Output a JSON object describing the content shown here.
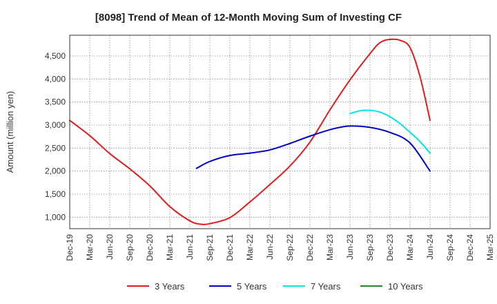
{
  "chart_data": {
    "type": "line",
    "title": "[8098]  Trend of Mean of 12-Month Moving Sum of Investing CF",
    "ylabel": "Amount (million yen)",
    "xlabel": "",
    "ylim": [
      750,
      4950
    ],
    "y_ticks": [
      1000,
      1500,
      2000,
      2500,
      3000,
      3500,
      4000,
      4500
    ],
    "y_tick_labels": [
      "1,000",
      "1,500",
      "2,000",
      "2,500",
      "3,000",
      "3,500",
      "4,000",
      "4,500"
    ],
    "categories": [
      "Dec-19",
      "Mar-20",
      "Jun-20",
      "Sep-20",
      "Dec-20",
      "Mar-21",
      "Jun-21",
      "Sep-21",
      "Dec-21",
      "Mar-22",
      "Jun-22",
      "Sep-22",
      "Dec-22",
      "Mar-23",
      "Jun-23",
      "Sep-23",
      "Dec-23",
      "Mar-24",
      "Jun-24",
      "Sep-24",
      "Dec-24",
      "Mar-25"
    ],
    "grid": true,
    "series": [
      {
        "name": "3 Years",
        "color": "#e41a1c",
        "x": [
          0,
          1,
          2,
          3,
          4,
          5,
          6,
          6.5,
          7,
          8,
          9,
          10,
          11,
          12,
          13,
          14,
          15,
          15.5,
          16,
          16.5,
          17,
          17.5,
          18
        ],
        "values": [
          3100,
          2770,
          2380,
          2050,
          1680,
          1230,
          920,
          850,
          860,
          990,
          1330,
          1710,
          2110,
          2630,
          3330,
          3980,
          4550,
          4790,
          4860,
          4840,
          4680,
          4050,
          3100
        ]
      },
      {
        "name": "5 Years",
        "color": "#0000cc",
        "x": [
          6.333,
          7,
          8,
          9,
          10,
          11,
          12,
          13,
          13.5,
          14,
          15,
          16,
          17,
          18
        ],
        "values": [
          2060,
          2210,
          2340,
          2390,
          2460,
          2600,
          2760,
          2900,
          2950,
          2980,
          2950,
          2840,
          2610,
          2000
        ]
      },
      {
        "name": "7 Years",
        "color": "#00e5e5",
        "x": [
          14,
          14.5,
          15,
          15.5,
          16,
          16.5,
          17,
          17.5,
          18
        ],
        "values": [
          3250,
          3310,
          3320,
          3280,
          3180,
          3030,
          2840,
          2640,
          2390
        ]
      },
      {
        "name": "10 Years",
        "color": "#228b22",
        "x": [],
        "values": []
      }
    ]
  }
}
